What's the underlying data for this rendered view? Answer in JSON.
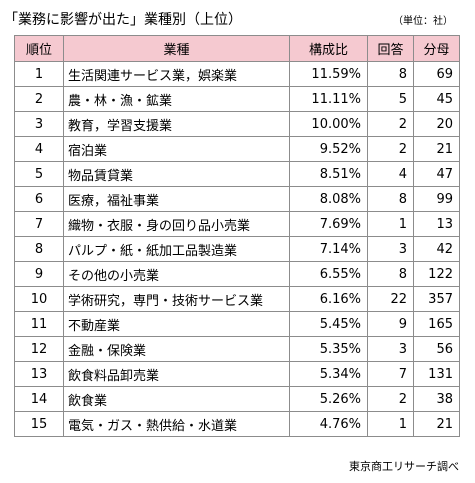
{
  "title": "「業務に影響が出た」業種別（上位）",
  "unit": "（単位：社）",
  "source": "東京商工リサーチ調べ",
  "chart_data": {
    "type": "table",
    "columns": [
      "順位",
      "業種",
      "構成比",
      "回答",
      "分母"
    ],
    "rows": [
      [
        "1",
        "生活関連サービス業，娯楽業",
        "11.59%",
        "8",
        "69"
      ],
      [
        "2",
        "農・林・漁・鉱業",
        "11.11%",
        "5",
        "45"
      ],
      [
        "3",
        "教育，学習支援業",
        "10.00%",
        "2",
        "20"
      ],
      [
        "4",
        "宿泊業",
        "9.52%",
        "2",
        "21"
      ],
      [
        "5",
        "物品賃貸業",
        "8.51%",
        "4",
        "47"
      ],
      [
        "6",
        "医療，福祉事業",
        "8.08%",
        "8",
        "99"
      ],
      [
        "7",
        "織物・衣服・身の回り品小売業",
        "7.69%",
        "1",
        "13"
      ],
      [
        "8",
        "パルプ・紙・紙加工品製造業",
        "7.14%",
        "3",
        "42"
      ],
      [
        "9",
        "その他の小売業",
        "6.55%",
        "8",
        "122"
      ],
      [
        "10",
        "学術研究，専門・技術サービス業",
        "6.16%",
        "22",
        "357"
      ],
      [
        "11",
        "不動産業",
        "5.45%",
        "9",
        "165"
      ],
      [
        "12",
        "金融・保険業",
        "5.35%",
        "3",
        "56"
      ],
      [
        "13",
        "飲食料品卸売業",
        "5.34%",
        "7",
        "131"
      ],
      [
        "14",
        "飲食業",
        "5.26%",
        "2",
        "38"
      ],
      [
        "15",
        "電気・ガス・熱供給・水道業",
        "4.76%",
        "1",
        "21"
      ]
    ]
  }
}
